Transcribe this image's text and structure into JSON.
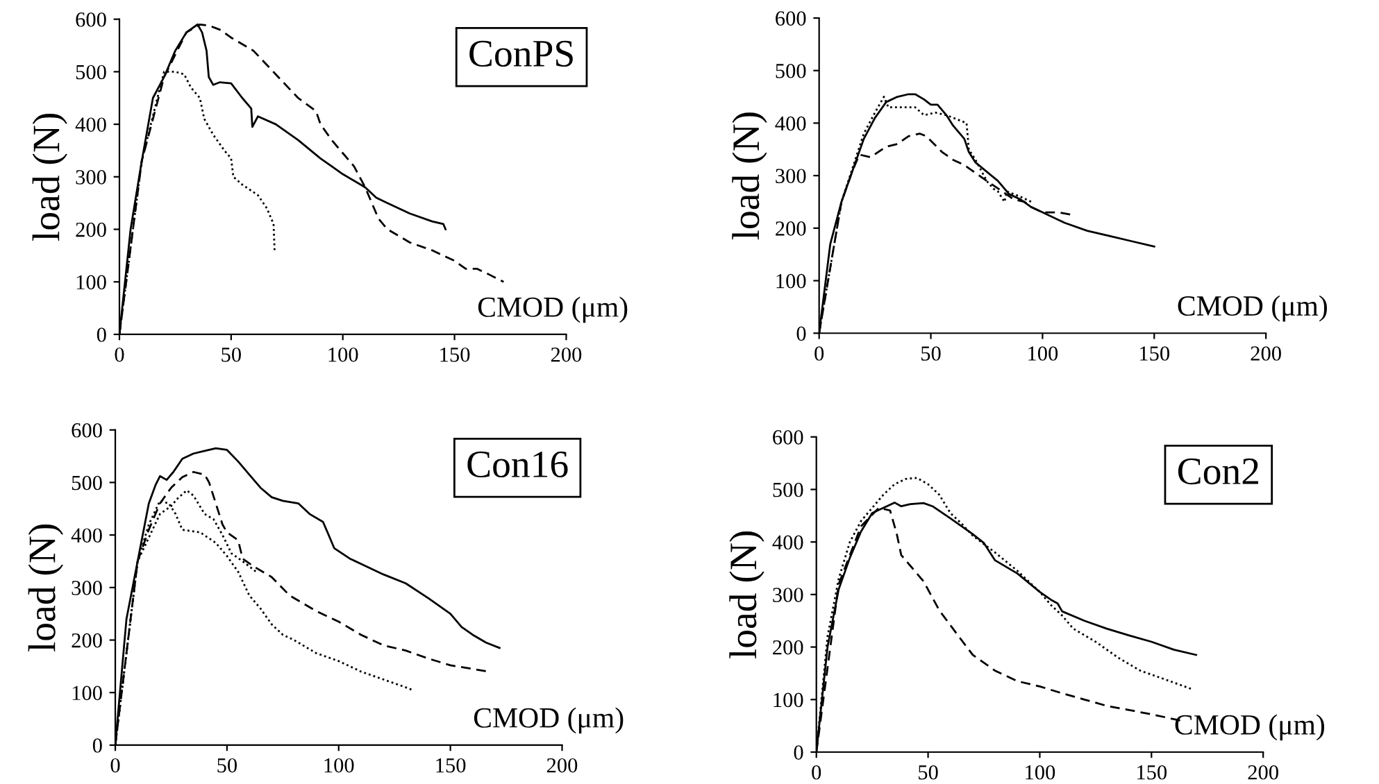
{
  "chart_data": [
    {
      "type": "line",
      "title": "ConPS",
      "xlabel": "CMOD (μm)",
      "ylabel": "load (N)",
      "xlim": [
        0,
        200
      ],
      "ylim": [
        0,
        600
      ],
      "xticks": [
        0,
        50,
        100,
        150,
        200
      ],
      "yticks": [
        0,
        100,
        200,
        300,
        400,
        500,
        600
      ],
      "grid": false,
      "legend": false,
      "series": [
        {
          "color": "#000000",
          "line_style": "solid",
          "x": [
            0,
            5,
            10,
            15,
            20,
            25,
            30,
            35,
            37,
            39,
            40,
            42,
            45,
            50,
            55,
            59,
            59.5,
            62,
            70,
            80,
            90,
            95,
            100,
            110,
            115,
            120,
            130,
            140,
            145,
            146
          ],
          "values": [
            0,
            200,
            330,
            450,
            490,
            540,
            575,
            590,
            575,
            540,
            490,
            475,
            480,
            478,
            450,
            430,
            395,
            415,
            400,
            370,
            335,
            320,
            305,
            280,
            260,
            250,
            230,
            215,
            210,
            200
          ]
        },
        {
          "color": "#000000",
          "line_style": "dashed",
          "x": [
            0,
            10,
            20,
            30,
            36,
            40,
            45,
            50,
            60,
            70,
            80,
            88,
            90,
            95,
            100,
            105,
            110,
            113,
            116,
            120,
            130,
            140,
            150,
            155,
            160,
            165,
            172
          ],
          "values": [
            0,
            330,
            490,
            575,
            590,
            588,
            580,
            565,
            540,
            495,
            450,
            425,
            400,
            370,
            345,
            320,
            280,
            250,
            220,
            200,
            175,
            160,
            140,
            125,
            125,
            115,
            100
          ]
        },
        {
          "color": "#000000",
          "line_style": "dotted",
          "x": [
            0,
            10,
            17,
            20,
            25,
            29,
            32,
            36,
            38,
            42,
            47,
            50,
            51,
            55,
            62,
            66,
            69,
            69.5
          ],
          "values": [
            0,
            330,
            450,
            500,
            500,
            495,
            470,
            450,
            410,
            380,
            350,
            335,
            300,
            285,
            265,
            240,
            210,
            155
          ]
        }
      ]
    },
    {
      "type": "line",
      "xlabel": "CMOD (μm)",
      "ylabel": "load (N)",
      "xlim": [
        0,
        200
      ],
      "ylim": [
        0,
        600
      ],
      "xticks": [
        0,
        50,
        100,
        150,
        200
      ],
      "yticks": [
        0,
        100,
        200,
        300,
        400,
        500,
        600
      ],
      "grid": false,
      "legend": false,
      "series": [
        {
          "color": "#000000",
          "line_style": "solid",
          "x": [
            0,
            5,
            10,
            15,
            20,
            25,
            30,
            35,
            40,
            43,
            47,
            50,
            53,
            57,
            60,
            65,
            67,
            70,
            80,
            85,
            90,
            95,
            100,
            110,
            120,
            130,
            140,
            150
          ],
          "values": [
            0,
            170,
            250,
            310,
            370,
            410,
            440,
            450,
            455,
            455,
            445,
            435,
            435,
            415,
            395,
            370,
            345,
            325,
            290,
            265,
            255,
            240,
            230,
            210,
            195,
            185,
            175,
            165
          ]
        },
        {
          "color": "#000000",
          "line_style": "dashed",
          "x": [
            0,
            10,
            15,
            18,
            23,
            30,
            35,
            40,
            45,
            48,
            55,
            60,
            65,
            70,
            75,
            82,
            87,
            92,
            95,
            100,
            107,
            114
          ],
          "values": [
            0,
            250,
            310,
            340,
            335,
            355,
            360,
            375,
            380,
            375,
            345,
            330,
            320,
            305,
            290,
            270,
            255,
            250,
            240,
            230,
            230,
            225
          ]
        },
        {
          "color": "#000000",
          "line_style": "dotted",
          "x": [
            0,
            10,
            20,
            25,
            29,
            31,
            37,
            43,
            47,
            52,
            57,
            63,
            66,
            67,
            70,
            75,
            78,
            80,
            83,
            84,
            90,
            95
          ],
          "values": [
            0,
            250,
            380,
            420,
            450,
            430,
            430,
            430,
            415,
            420,
            415,
            405,
            400,
            350,
            330,
            290,
            275,
            270,
            250,
            270,
            260,
            250
          ]
        }
      ]
    },
    {
      "type": "line",
      "title": "Con16",
      "xlabel": "CMOD (μm)",
      "ylabel": "load (N)",
      "xlim": [
        0,
        200
      ],
      "ylim": [
        0,
        600
      ],
      "xticks": [
        0,
        50,
        100,
        150,
        200
      ],
      "yticks": [
        0,
        100,
        200,
        300,
        400,
        500,
        600
      ],
      "grid": false,
      "legend": false,
      "series": [
        {
          "color": "#000000",
          "line_style": "solid",
          "x": [
            0,
            5,
            10,
            15,
            18,
            20,
            23,
            26,
            30,
            35,
            40,
            45,
            50,
            55,
            60,
            65,
            70,
            75,
            82,
            87,
            93,
            95,
            98,
            105,
            110,
            120,
            130,
            140,
            150,
            155,
            160,
            166,
            172
          ],
          "values": [
            0,
            240,
            350,
            460,
            495,
            512,
            505,
            520,
            545,
            555,
            560,
            565,
            562,
            540,
            515,
            490,
            472,
            465,
            460,
            440,
            425,
            405,
            375,
            355,
            345,
            325,
            308,
            280,
            250,
            225,
            210,
            195,
            185
          ]
        },
        {
          "color": "#000000",
          "line_style": "dashed",
          "x": [
            0,
            10,
            15,
            20,
            25,
            30,
            35,
            40,
            42,
            45,
            48,
            50,
            55,
            57,
            62,
            70,
            78,
            90,
            100,
            110,
            120,
            130,
            140,
            150,
            160,
            167
          ],
          "values": [
            0,
            350,
            410,
            460,
            490,
            510,
            520,
            515,
            500,
            460,
            420,
            405,
            390,
            355,
            340,
            320,
            285,
            255,
            235,
            210,
            190,
            180,
            165,
            152,
            145,
            140
          ]
        },
        {
          "color": "#000000",
          "line_style": "dotted",
          "x": [
            0,
            10,
            15,
            20,
            25,
            28,
            32,
            35,
            40,
            44,
            48,
            52,
            57,
            63
          ],
          "values": [
            0,
            350,
            395,
            440,
            455,
            470,
            485,
            475,
            440,
            430,
            400,
            365,
            350,
            330
          ]
        },
        {
          "color": "#000000",
          "line_style": "dotted",
          "x": [
            0,
            10,
            15,
            20,
            24,
            27,
            30,
            38,
            45,
            50,
            55,
            60,
            65,
            70,
            75,
            80,
            90,
            100,
            110,
            120,
            130,
            133
          ],
          "values": [
            0,
            350,
            420,
            465,
            460,
            440,
            410,
            405,
            385,
            360,
            330,
            285,
            260,
            230,
            210,
            200,
            175,
            160,
            140,
            125,
            110,
            105
          ]
        }
      ]
    },
    {
      "type": "line",
      "title": "Con2",
      "xlabel": "CMOD (μm)",
      "ylabel": "load (N)",
      "xlim": [
        0,
        200
      ],
      "ylim": [
        0,
        600
      ],
      "xticks": [
        0,
        50,
        100,
        150,
        200
      ],
      "yticks": [
        0,
        100,
        200,
        300,
        400,
        500,
        600
      ],
      "grid": false,
      "legend": false,
      "series": [
        {
          "color": "#000000",
          "line_style": "solid",
          "x": [
            0,
            5,
            10,
            15,
            20,
            25,
            30,
            35,
            38,
            42,
            48,
            52,
            60,
            70,
            75,
            80,
            90,
            100,
            105,
            108,
            110,
            120,
            130,
            140,
            150,
            160,
            170
          ],
          "values": [
            0,
            200,
            310,
            370,
            420,
            455,
            465,
            475,
            468,
            472,
            474,
            468,
            445,
            415,
            398,
            365,
            340,
            305,
            290,
            283,
            268,
            250,
            235,
            222,
            210,
            195,
            185
          ]
        },
        {
          "color": "#000000",
          "line_style": "dotted",
          "x": [
            0,
            5,
            10,
            15,
            20,
            25,
            30,
            35,
            40,
            45,
            50,
            55,
            60,
            65,
            70,
            80,
            90,
            100,
            105,
            110,
            115,
            125,
            135,
            145,
            155,
            168
          ],
          "values": [
            0,
            220,
            330,
            400,
            440,
            465,
            490,
            510,
            520,
            522,
            510,
            490,
            455,
            435,
            412,
            380,
            345,
            305,
            280,
            260,
            235,
            210,
            180,
            155,
            140,
            120
          ]
        },
        {
          "color": "#000000",
          "line_style": "dashed",
          "x": [
            0,
            10,
            20,
            28,
            33,
            36,
            38,
            42,
            48,
            55,
            62,
            70,
            80,
            90,
            100,
            110,
            120,
            130,
            140,
            150,
            163
          ],
          "values": [
            0,
            320,
            430,
            465,
            460,
            415,
            375,
            355,
            325,
            270,
            230,
            185,
            155,
            135,
            125,
            112,
            100,
            88,
            80,
            72,
            60
          ]
        }
      ]
    }
  ]
}
